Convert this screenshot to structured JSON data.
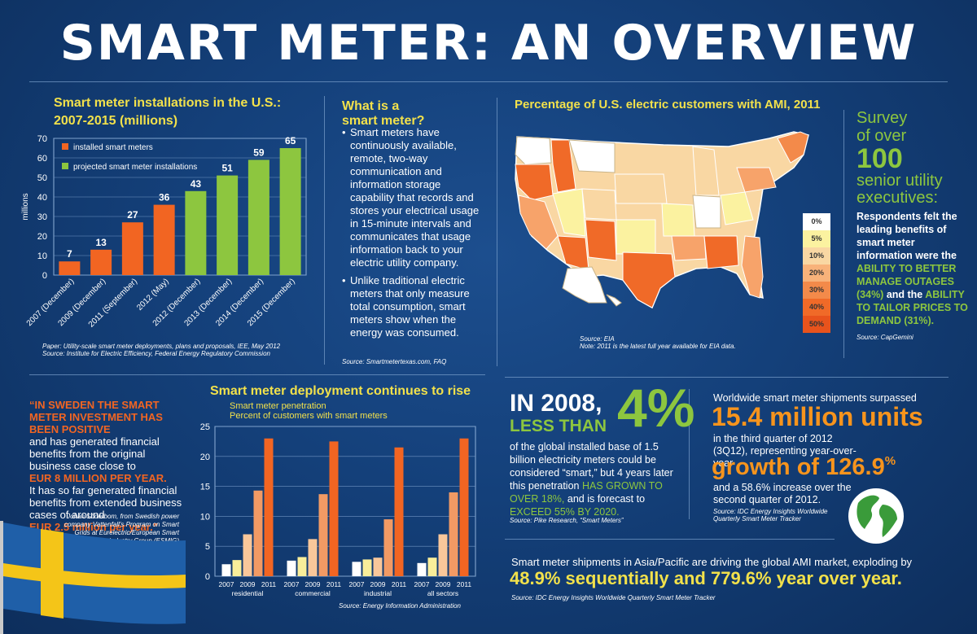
{
  "title": "SMART METER:  AN OVERVIEW",
  "colors": {
    "orange": "#f26522",
    "green": "#8dc63f",
    "yellow": "#f2e14b",
    "background": "#14407a"
  },
  "installations": {
    "heading_line1": "Smart meter installations in the U.S.:",
    "heading_line2": "2007-2015 (millions)",
    "source_line1": "Paper: Utility-scale smart meter deployments, plans and proposals, IEE, May 2012",
    "source_line2": "Source: Institute for Electric Efficiency, Federal Energy Regulatory Commission"
  },
  "what_is": {
    "heading_line1": "What is a",
    "heading_line2": "smart meter?",
    "bullet1": "Smart meters have continuously available, remote, two-way communication and information storage capability that records and stores your electrical usage in 15-minute intervals and communicates that usage information back to your electric utility company.",
    "bullet2": "Unlike traditional electric meters that only measure total consumption, smart meters show when the energy was consumed.",
    "source": "Source: Smartmetertexas.com, FAQ"
  },
  "ami_map": {
    "heading": "Percentage of U.S. electric customers with AMI, 2011",
    "legend": [
      "0%",
      "5%",
      "10%",
      "20%",
      "30%",
      "40%",
      "50%"
    ],
    "legend_colors": [
      "#ffffff",
      "#fbf2a0",
      "#f9d7a3",
      "#f8b27a",
      "#f38a4a",
      "#f06a28",
      "#e8531c"
    ],
    "source_line1": "Source: EIA",
    "source_line2": "Note: 2011 is the latest full year available for EIA data."
  },
  "survey": {
    "line1": "Survey",
    "line2": "of over",
    "number": "100",
    "line3": "senior utility",
    "line4": "executives:",
    "body_a": "Respondents felt the leading benefits of smart meter information were the ",
    "highlight1": "ABILITY TO BETTER MANAGE OUTAGES (34%)",
    "body_b": " and the ",
    "highlight2": "ABILITY TO TAILOR PRICES TO DEMAND (31%).",
    "source": "Source: CapGemini"
  },
  "sweden": {
    "quote": "“IN SWEDEN THE SMART METER INVESTMENT HAS BEEN POSITIVE",
    "text1": "and has generated financial benefits from the original business case close to",
    "amount1": "EUR 8 MILLION PER YEAR.",
    "text2": "It has so far generated financial benefits from extended business cases of around",
    "amount2": "EUR 2.5 million per year.”",
    "attribution": "Johan Söderbom, from Swedish power company Vattenfall’s Program on Smart Grids at Eurelectric/European Smart Metering Industry Group (ESMIG) conference"
  },
  "deployment": {
    "heading": "Smart meter deployment continues to rise",
    "subtitle1": "Smart meter penetration",
    "subtitle2": "Percent of customers with smart meters",
    "source": "Source: Energy Information Administration"
  },
  "in2008": {
    "year": "IN 2008,",
    "less": "LESS THAN",
    "big": "4%",
    "body_a": "of the global installed base of 1.5 billion electricity meters could be considered “smart,” but 4 years later this penetration ",
    "grown": "HAS GROWN TO OVER 18%,",
    "body_b": " and is forecast to ",
    "exceed": "EXCEED 55% BY 2020.",
    "source": "Source: Pike Research, “Smart Meters”"
  },
  "shipments": {
    "line1": "Worldwide smart meter shipments surpassed",
    "units": "15.4 million units",
    "line2": "in the third quarter of 2012 (3Q12), representing year-over-year",
    "growth": "growth of 126.9",
    "growth_pct": "%",
    "line3": "and a 58.6% increase over the second quarter of 2012.",
    "source_line1": "Source: IDC Energy Insights Worldwide",
    "source_line2": "Quarterly Smart Meter Tracker"
  },
  "asia": {
    "line1": "Smart meter shipments in Asia/Pacific are driving the global AMI market, exploding by",
    "line2": "48.9% sequentially and 779.6% year over year.",
    "source": "Source: IDC Energy Insights Worldwide Quarterly Smart Meter Tracker"
  },
  "chart_data": [
    {
      "type": "bar",
      "title": "Smart meter installations in the U.S.: 2007-2015 (millions)",
      "ylabel": "millions",
      "ylim": [
        0,
        70
      ],
      "yticks": [
        0,
        10,
        20,
        30,
        40,
        50,
        60,
        70
      ],
      "categories": [
        "2007 (December)",
        "2009 (December)",
        "2011 (September)",
        "2012 (May)",
        "2012 (December)",
        "2013 (December)",
        "2014 (December)",
        "2015 (December)"
      ],
      "values": [
        7,
        13,
        27,
        36,
        43,
        51,
        59,
        65
      ],
      "kind": [
        "installed",
        "installed",
        "installed",
        "installed",
        "projected",
        "projected",
        "projected",
        "projected"
      ],
      "legend": [
        {
          "name": "installed smart meters",
          "color": "#f26522"
        },
        {
          "name": "projected smart meter installations",
          "color": "#8dc63f"
        }
      ],
      "legend_position": "top-left",
      "grid": true
    },
    {
      "type": "bar",
      "title": "Smart meter deployment continues to rise",
      "subtitle": "Smart meter penetration / Percent of customers with smart meters",
      "ylim": [
        0,
        25
      ],
      "yticks": [
        0,
        5,
        10,
        15,
        20,
        25
      ],
      "groups": [
        "residential",
        "commercial",
        "industrial",
        "all sectors"
      ],
      "x_ticks": [
        "2007",
        "2009",
        "2011"
      ],
      "years": [
        "2007",
        "2008",
        "2009",
        "2010",
        "2011"
      ],
      "bar_colors": [
        "#ffffff",
        "#f9ee9a",
        "#f9c79a",
        "#f29a64",
        "#f26522"
      ],
      "series": [
        {
          "values": [
            2.0,
            2.7,
            7.0,
            14.3,
            23.0
          ]
        },
        {
          "values": [
            2.6,
            3.2,
            6.2,
            13.7,
            22.5
          ]
        },
        {
          "values": [
            2.4,
            2.8,
            3.1,
            9.5,
            21.5
          ]
        },
        {
          "values": [
            2.2,
            3.1,
            7.0,
            14.0,
            23.0
          ]
        }
      ],
      "grid": true
    }
  ]
}
